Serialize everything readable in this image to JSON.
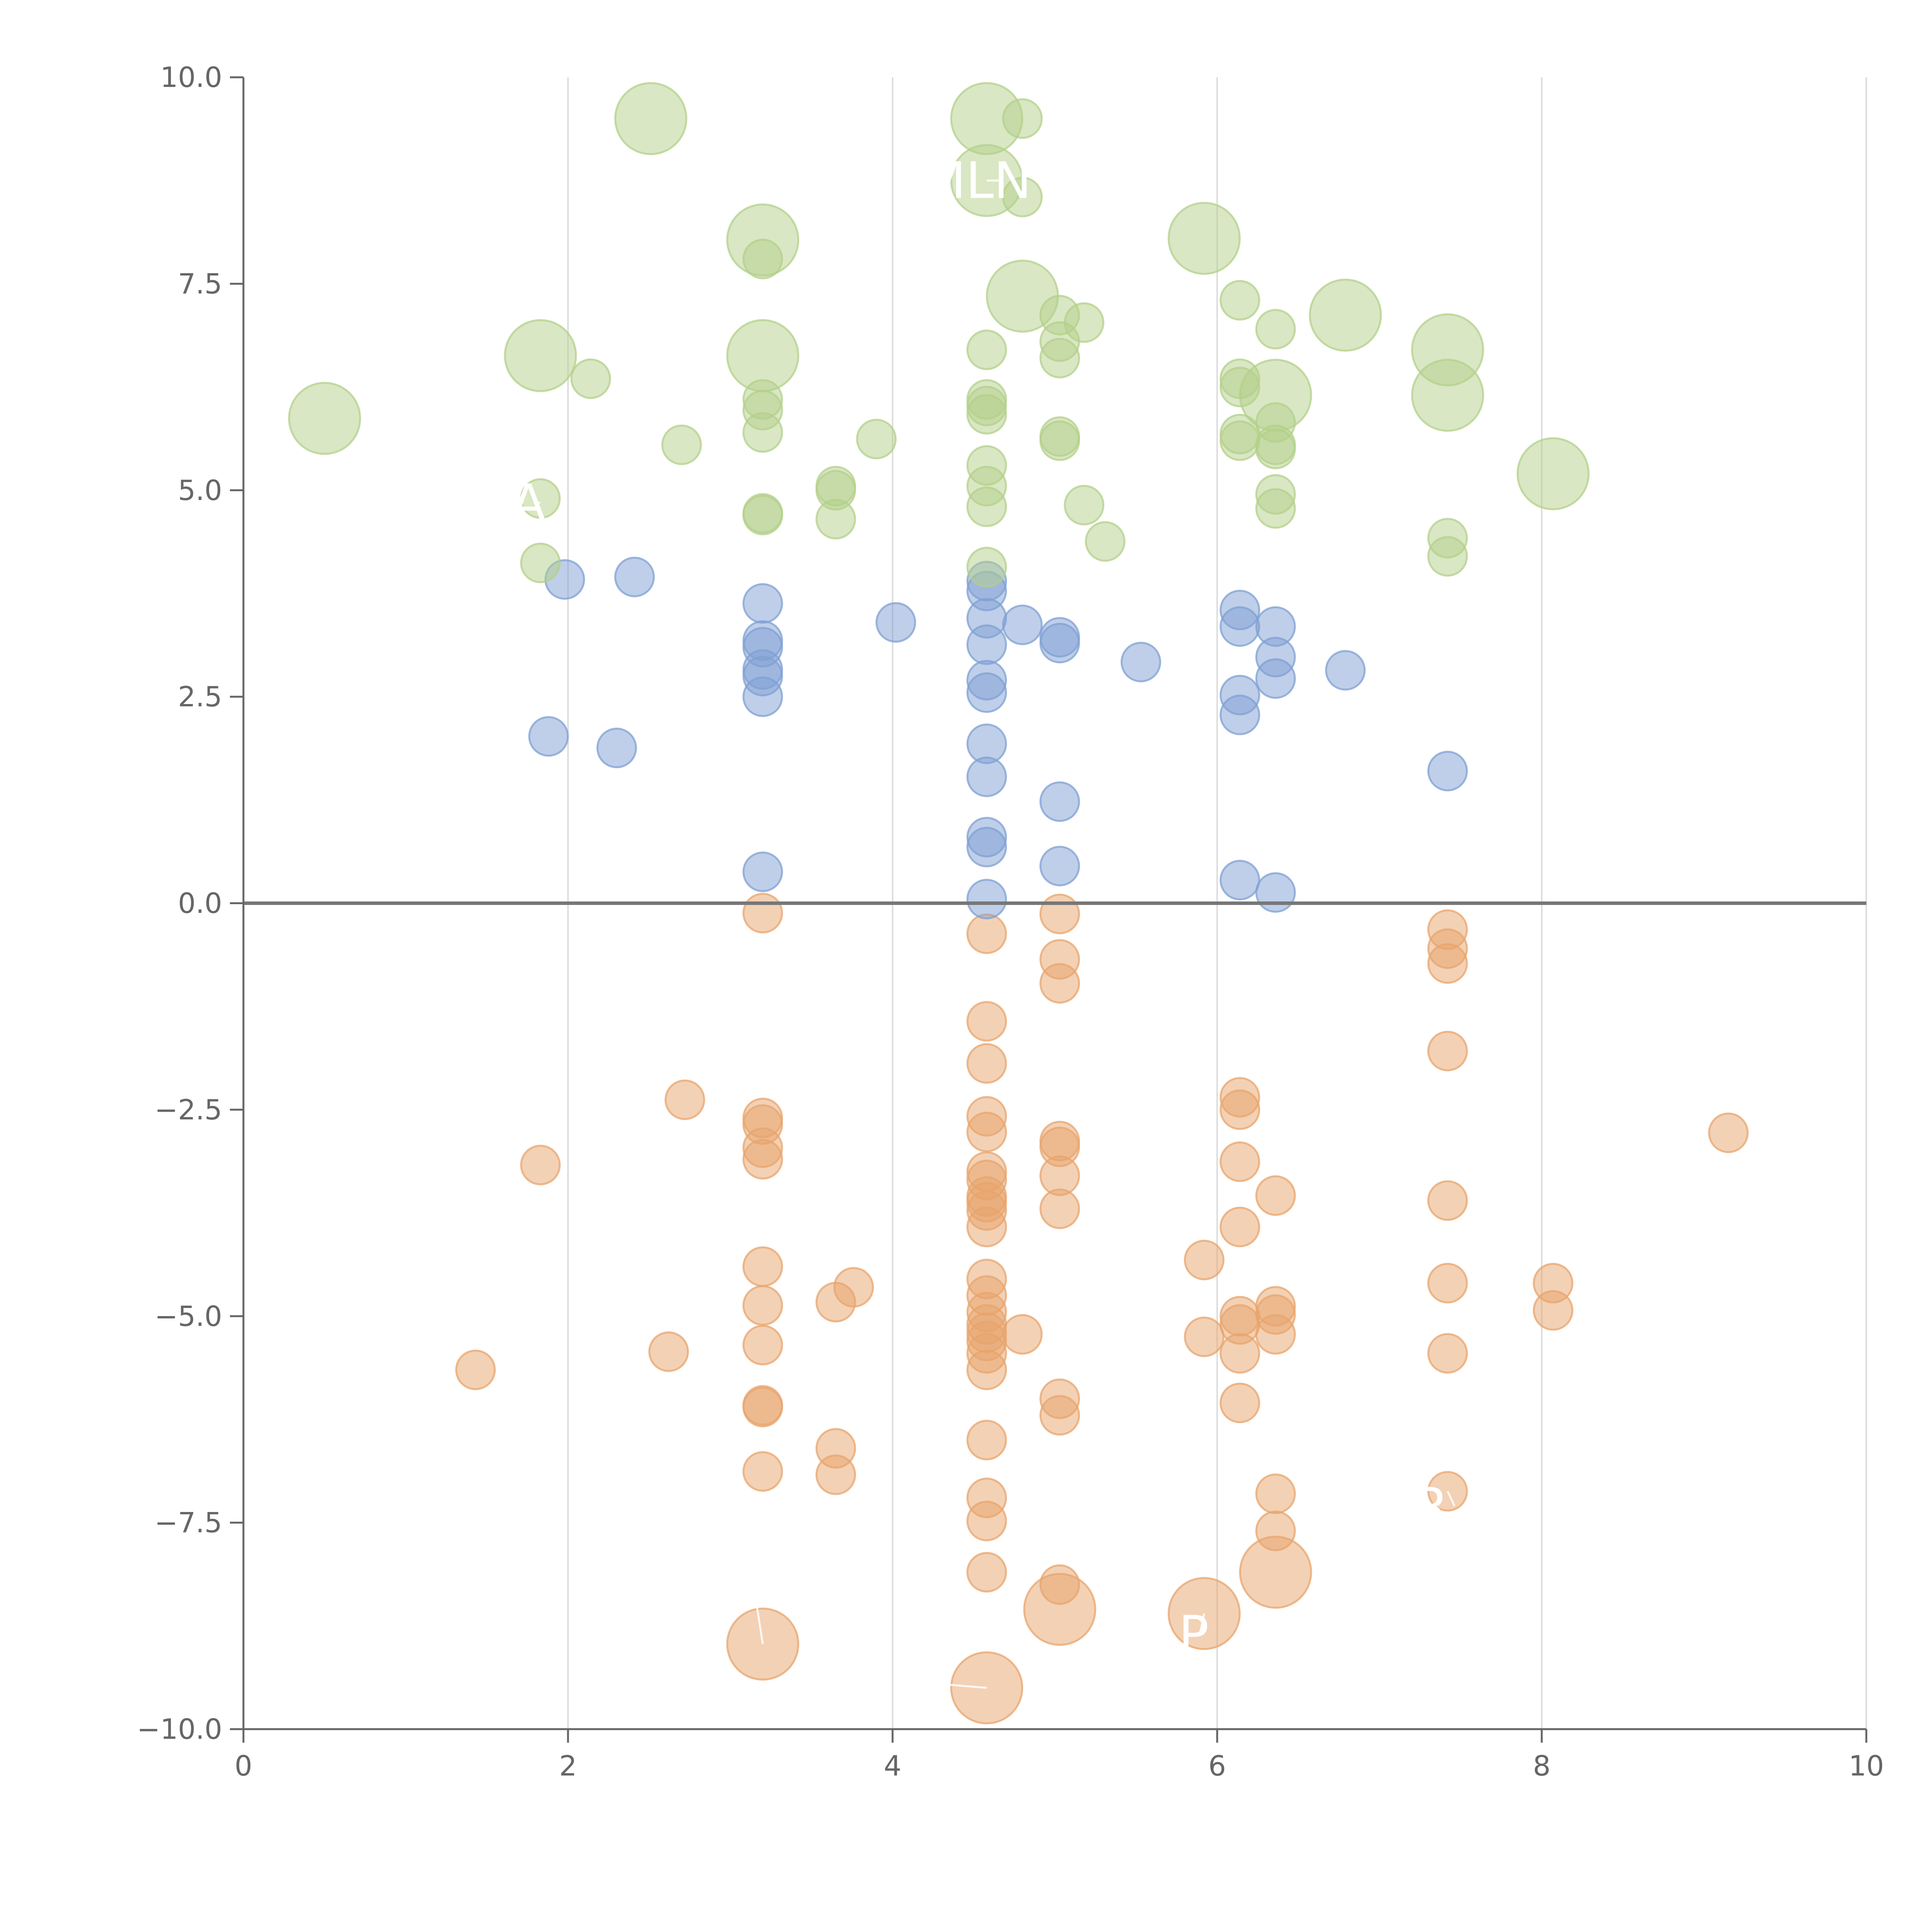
{
  "chart_data": {
    "type": "scatter",
    "title": "",
    "xlabel": "",
    "ylabel": "",
    "xlim": [
      0,
      10
    ],
    "ylim": [
      -10,
      10
    ],
    "x_ticks": [
      {
        "value": 0,
        "label": "0"
      },
      {
        "value": 2,
        "label": "2"
      },
      {
        "value": 4,
        "label": "4"
      },
      {
        "value": 6,
        "label": "6"
      },
      {
        "value": 8,
        "label": "8"
      },
      {
        "value": 10,
        "label": "10"
      }
    ],
    "y_ticks": [
      {
        "value": 10,
        "label": "10.0"
      },
      {
        "value": 7.5,
        "label": "7.5"
      },
      {
        "value": 5,
        "label": "5.0"
      },
      {
        "value": 2.5,
        "label": "2.5"
      },
      {
        "value": 0,
        "label": "0.0"
      },
      {
        "value": -2.5,
        "label": "−2.5"
      },
      {
        "value": -5,
        "label": "−5.0"
      },
      {
        "value": -7.5,
        "label": "−7.5"
      },
      {
        "value": -10,
        "label": "−10.0"
      }
    ],
    "grid": {
      "vertical": true,
      "horizontal": false
    },
    "reference_line_y": 0,
    "legend": "none",
    "series": [
      {
        "color": "#e8a46c",
        "points": [
          [
            3.2,
            -0.12
          ],
          [
            4.58,
            -0.37
          ],
          [
            5.03,
            -0.13
          ],
          [
            5.03,
            -0.68
          ],
          [
            5.03,
            -0.97
          ],
          [
            7.42,
            -0.32
          ],
          [
            7.42,
            -0.55
          ],
          [
            7.42,
            -0.73
          ],
          [
            4.58,
            -1.43
          ],
          [
            4.58,
            -1.94
          ],
          [
            7.42,
            -1.79
          ],
          [
            2.72,
            -2.38
          ],
          [
            1.83,
            -3.17
          ],
          [
            3.2,
            -2.6
          ],
          [
            3.2,
            -2.68
          ],
          [
            3.2,
            -2.96
          ],
          [
            3.2,
            -3.1
          ],
          [
            4.58,
            -2.58
          ],
          [
            4.58,
            -2.77
          ],
          [
            4.58,
            -3.25
          ],
          [
            4.58,
            -3.35
          ],
          [
            4.58,
            -3.55
          ],
          [
            4.58,
            -3.62
          ],
          [
            4.58,
            -3.72
          ],
          [
            4.58,
            -3.92
          ],
          [
            5.03,
            -2.88
          ],
          [
            5.03,
            -2.95
          ],
          [
            5.03,
            -3.3
          ],
          [
            5.03,
            -3.7
          ],
          [
            6.14,
            -2.35
          ],
          [
            6.14,
            -2.5
          ],
          [
            6.14,
            -3.13
          ],
          [
            6.14,
            -3.92
          ],
          [
            6.36,
            -3.54
          ],
          [
            7.42,
            -3.6
          ],
          [
            9.15,
            -2.78
          ],
          [
            1.43,
            -5.65
          ],
          [
            2.62,
            -5.43
          ],
          [
            3.2,
            -4.4
          ],
          [
            3.2,
            -4.87
          ],
          [
            3.2,
            -5.35
          ],
          [
            3.2,
            -6.08
          ],
          [
            3.2,
            -6.1
          ],
          [
            3.2,
            -6.88
          ],
          [
            3.65,
            -4.83
          ],
          [
            3.76,
            -4.65
          ],
          [
            3.65,
            -6.6
          ],
          [
            3.65,
            -6.92
          ],
          [
            4.58,
            -4.55
          ],
          [
            4.58,
            -4.75
          ],
          [
            4.58,
            -4.95
          ],
          [
            4.58,
            -5.1
          ],
          [
            4.58,
            -5.2
          ],
          [
            4.58,
            -5.3
          ],
          [
            4.58,
            -5.45
          ],
          [
            4.58,
            -5.65
          ],
          [
            4.58,
            -6.5
          ],
          [
            4.58,
            -7.2
          ],
          [
            4.58,
            -7.48
          ],
          [
            4.58,
            -8.1
          ],
          [
            4.8,
            -5.22
          ],
          [
            5.03,
            -6.0
          ],
          [
            5.03,
            -6.2
          ],
          [
            5.03,
            -8.25
          ],
          [
            5.92,
            -4.32
          ],
          [
            5.92,
            -5.25
          ],
          [
            6.14,
            -5.0
          ],
          [
            6.14,
            -5.1
          ],
          [
            6.14,
            -5.45
          ],
          [
            6.14,
            -6.05
          ],
          [
            6.36,
            -4.88
          ],
          [
            6.36,
            -4.98
          ],
          [
            6.36,
            -5.22
          ],
          [
            6.36,
            -7.15
          ],
          [
            6.36,
            -7.6
          ],
          [
            7.42,
            -4.6
          ],
          [
            7.42,
            -5.45
          ],
          [
            7.42,
            -7.12
          ],
          [
            8.07,
            -4.6
          ],
          [
            8.07,
            -4.93
          ],
          [
            3.2,
            -8.97,
            "big"
          ],
          [
            4.58,
            -9.5,
            "big"
          ],
          [
            5.03,
            -8.55,
            "big"
          ],
          [
            5.92,
            -8.6,
            "big"
          ],
          [
            6.36,
            -8.1,
            "big"
          ]
        ]
      },
      {
        "color": "#7fa0d3",
        "points": [
          [
            1.98,
            3.92
          ],
          [
            2.41,
            3.95
          ],
          [
            1.88,
            2.02
          ],
          [
            2.3,
            1.88
          ],
          [
            3.2,
            3.63
          ],
          [
            3.2,
            3.18
          ],
          [
            3.2,
            3.1
          ],
          [
            3.2,
            2.83
          ],
          [
            3.2,
            2.75
          ],
          [
            3.2,
            2.5
          ],
          [
            3.2,
            0.38
          ],
          [
            4.02,
            3.4
          ],
          [
            4.58,
            3.9
          ],
          [
            4.58,
            3.78
          ],
          [
            4.58,
            3.45
          ],
          [
            4.58,
            3.13
          ],
          [
            4.58,
            2.7
          ],
          [
            4.58,
            2.55
          ],
          [
            4.58,
            1.93
          ],
          [
            4.58,
            1.53
          ],
          [
            4.58,
            0.8
          ],
          [
            4.58,
            0.68
          ],
          [
            4.58,
            0.05
          ],
          [
            4.8,
            3.37
          ],
          [
            5.03,
            3.22
          ],
          [
            5.03,
            3.15
          ],
          [
            5.03,
            1.23
          ],
          [
            5.03,
            0.45
          ],
          [
            5.53,
            2.92
          ],
          [
            6.14,
            3.55
          ],
          [
            6.14,
            3.35
          ],
          [
            6.14,
            2.52
          ],
          [
            6.14,
            2.28
          ],
          [
            6.14,
            0.28
          ],
          [
            6.36,
            3.35
          ],
          [
            6.36,
            2.98
          ],
          [
            6.36,
            2.72
          ],
          [
            6.36,
            0.13
          ],
          [
            6.79,
            2.82
          ],
          [
            7.42,
            1.6
          ]
        ]
      },
      {
        "color": "#b3d08a",
        "points": [
          [
            2.14,
            6.35
          ],
          [
            2.7,
            5.55
          ],
          [
            1.83,
            4.9
          ],
          [
            1.83,
            4.12
          ],
          [
            3.2,
            7.8
          ],
          [
            3.2,
            6.1
          ],
          [
            3.2,
            5.97
          ],
          [
            3.2,
            5.7
          ],
          [
            3.2,
            4.72
          ],
          [
            3.2,
            4.7
          ],
          [
            3.65,
            5.05
          ],
          [
            3.65,
            5.0
          ],
          [
            3.65,
            4.65
          ],
          [
            3.9,
            5.62
          ],
          [
            4.58,
            6.7
          ],
          [
            4.58,
            6.1
          ],
          [
            4.58,
            6.02
          ],
          [
            4.58,
            5.92
          ],
          [
            4.58,
            5.3
          ],
          [
            4.58,
            5.05
          ],
          [
            4.58,
            4.8
          ],
          [
            4.58,
            4.07
          ],
          [
            4.8,
            9.5
          ],
          [
            4.8,
            8.55
          ],
          [
            5.03,
            7.12
          ],
          [
            5.03,
            6.8
          ],
          [
            5.03,
            6.6
          ],
          [
            5.03,
            5.65
          ],
          [
            5.03,
            5.6
          ],
          [
            5.18,
            7.03
          ],
          [
            5.18,
            4.82
          ],
          [
            5.31,
            4.38
          ],
          [
            6.14,
            7.3
          ],
          [
            6.14,
            6.35
          ],
          [
            6.14,
            6.25
          ],
          [
            6.14,
            5.68
          ],
          [
            6.14,
            5.6
          ],
          [
            6.36,
            6.95
          ],
          [
            6.36,
            5.82
          ],
          [
            6.36,
            5.55
          ],
          [
            6.36,
            5.5
          ],
          [
            6.36,
            4.95
          ],
          [
            6.36,
            4.78
          ],
          [
            7.42,
            4.42
          ],
          [
            7.42,
            4.2
          ],
          [
            0.5,
            5.87,
            "big"
          ],
          [
            1.83,
            6.63,
            "big"
          ],
          [
            2.51,
            9.5,
            "big"
          ],
          [
            3.2,
            8.03,
            "big"
          ],
          [
            3.2,
            6.63,
            "big"
          ],
          [
            4.58,
            9.5,
            "big"
          ],
          [
            4.58,
            8.75,
            "big"
          ],
          [
            4.8,
            7.35,
            "big"
          ],
          [
            5.92,
            8.05,
            "big"
          ],
          [
            6.36,
            6.15,
            "big"
          ],
          [
            6.79,
            7.12,
            "big"
          ],
          [
            7.42,
            6.7,
            "big"
          ],
          [
            7.42,
            6.15,
            "big"
          ],
          [
            8.07,
            5.2,
            "big"
          ]
        ]
      }
    ],
    "point_labels": [
      {
        "text": "MLN",
        "x": 4.52,
        "y": 8.75,
        "px": 4.58,
        "py": 8.75
      },
      {
        "text": "BA",
        "x": 1.65,
        "y": 4.85,
        "px": 1.83,
        "py": 4.85
      },
      {
        "text": "K",
        "x": 4.13,
        "y": -9.45,
        "px": 4.58,
        "py": -9.5
      },
      {
        "text": "AP",
        "x": 5.75,
        "y": -8.85,
        "px": 5.92,
        "py": -8.6
      },
      {
        "text": "P",
        "x": 3.02,
        "y": -8.5,
        "px": 3.2,
        "py": -8.97
      },
      {
        "text": "R",
        "x": 7.32,
        "y": -7.3,
        "px": 7.42,
        "py": -7.12
      }
    ]
  }
}
